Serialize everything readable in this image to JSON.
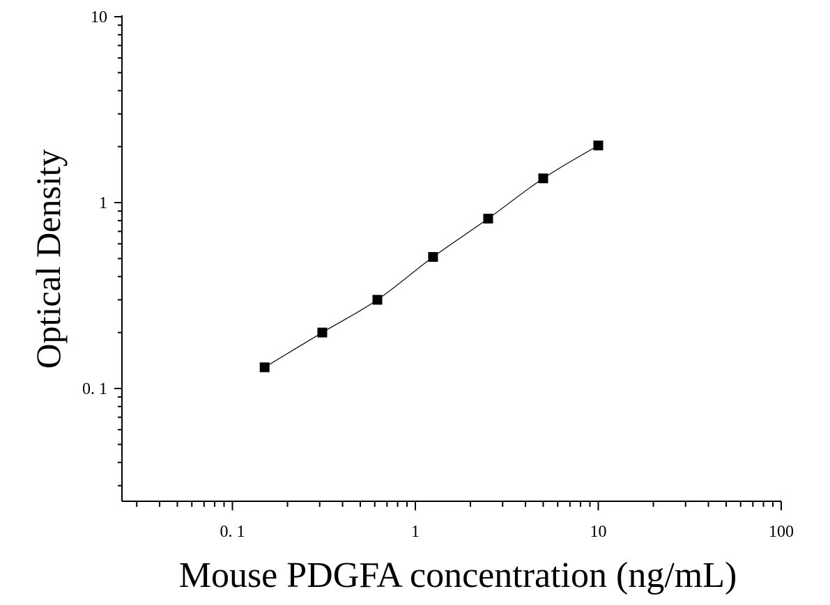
{
  "chart_data": {
    "type": "scatter",
    "title": "",
    "xlabel": "Mouse PDGFA concentration (ng/mL)",
    "ylabel": "Optical Density",
    "x_scale": "log",
    "y_scale": "log",
    "xlim": [
      0.025,
      100
    ],
    "ylim": [
      0.025,
      10
    ],
    "x_tick_labels": [
      "0. 1",
      "1",
      "10",
      "100"
    ],
    "x_tick_values": [
      0.1,
      1,
      10,
      100
    ],
    "y_tick_labels": [
      "0. 1",
      "1",
      "10"
    ],
    "y_tick_values": [
      0.1,
      1,
      10
    ],
    "grid": false,
    "legend": "none",
    "marker": "square",
    "color": "#000000",
    "series": [
      {
        "x": [
          0.15,
          0.31,
          0.62,
          1.25,
          2.5,
          5,
          10
        ],
        "y": [
          0.13,
          0.2,
          0.3,
          0.51,
          0.82,
          1.35,
          2.03
        ],
        "fit_line": true
      }
    ]
  }
}
